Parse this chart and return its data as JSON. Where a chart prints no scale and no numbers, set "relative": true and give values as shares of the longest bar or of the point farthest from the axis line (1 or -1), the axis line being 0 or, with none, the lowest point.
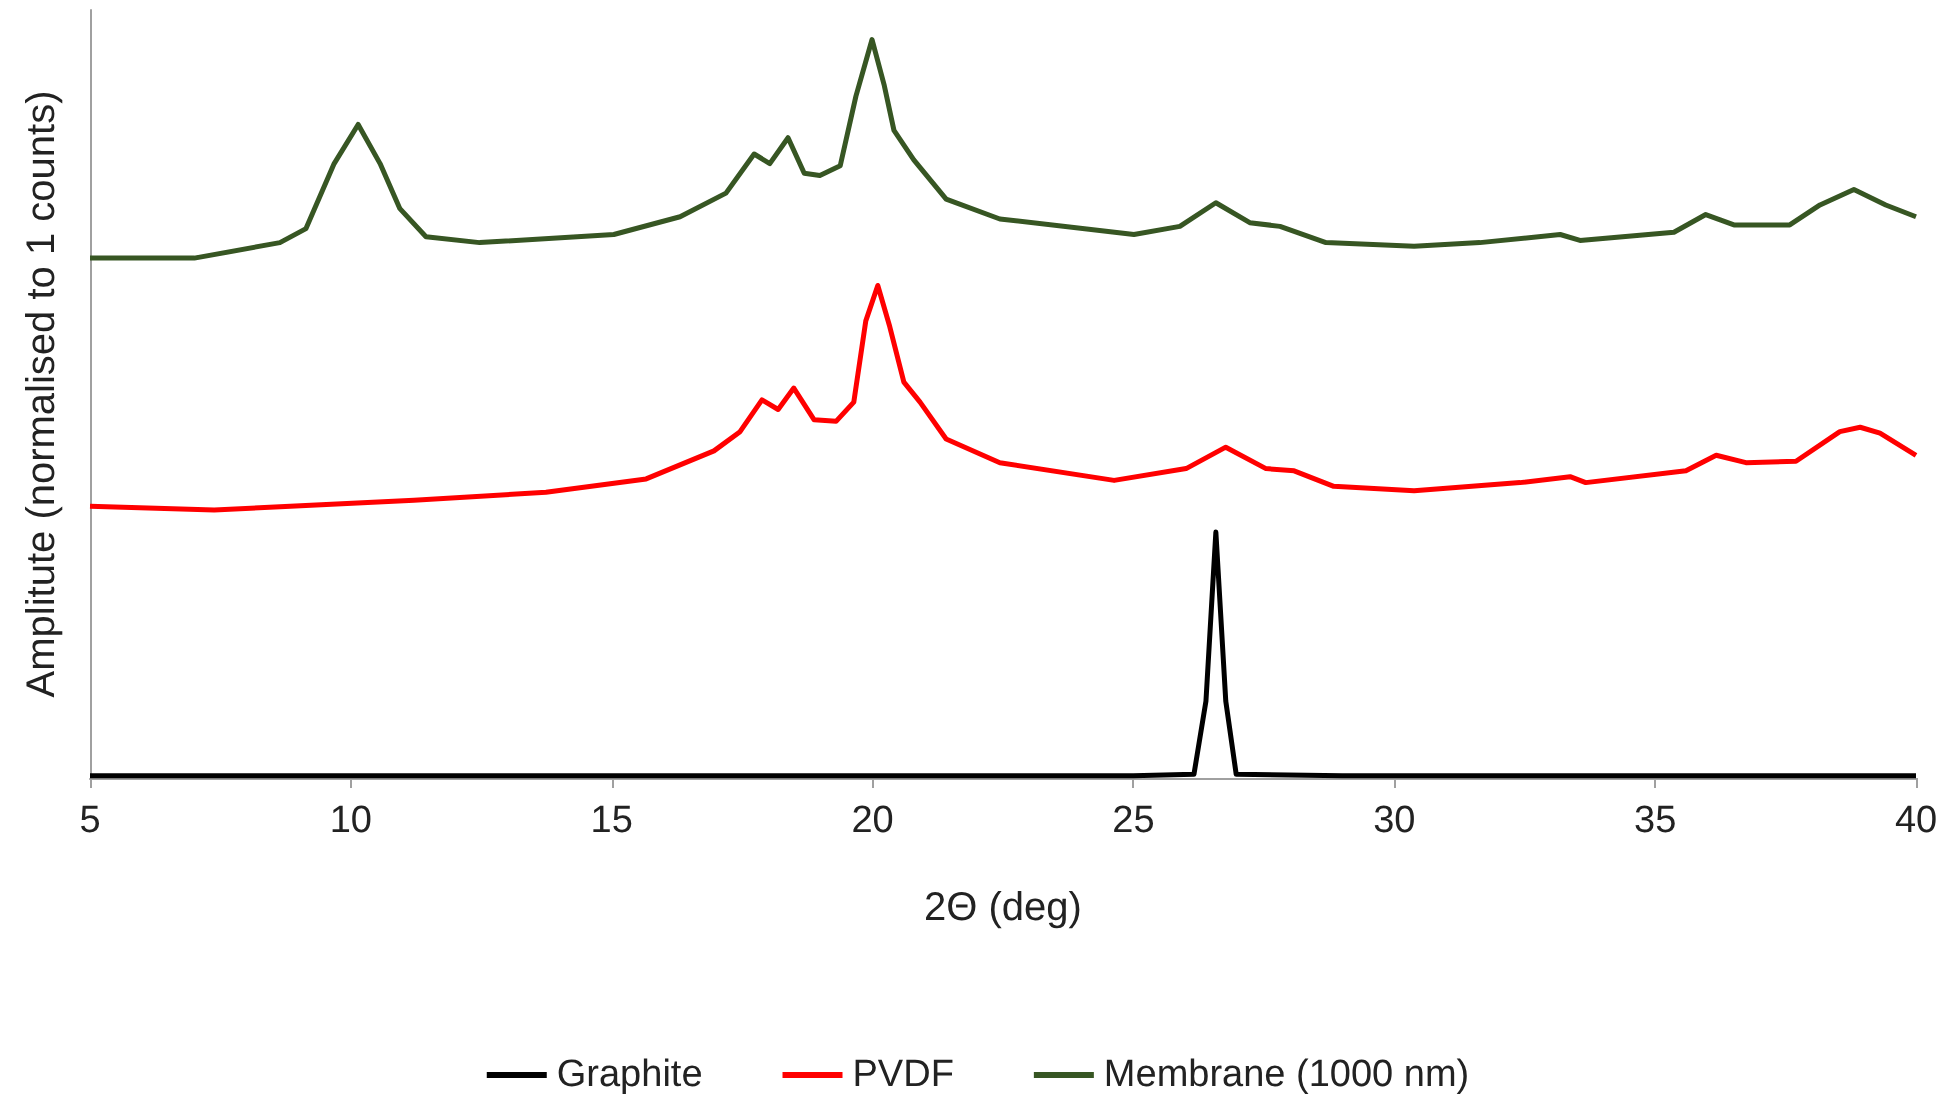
{
  "chart_data": {
    "type": "line",
    "xlabel": "2Θ (deg)",
    "ylabel": "Amplitute (normalised to 1 counts)",
    "relative": true,
    "xlim": [
      5,
      40
    ],
    "xticks": [
      5,
      10,
      15,
      20,
      25,
      30,
      35,
      40
    ],
    "grid": false,
    "legend": "bottom",
    "marker": "none",
    "line_style": "solid",
    "series": [
      {
        "name": "Graphite",
        "color": "#000000",
        "x": [
          5,
          10,
          15,
          20,
          25,
          26.16,
          26.39,
          26.58,
          26.77,
          26.97,
          29,
          35,
          40
        ],
        "values": [
          0.003,
          0.003,
          0.003,
          0.003,
          0.003,
          0.005,
          0.104,
          0.333,
          0.104,
          0.005,
          0.003,
          0.003,
          0.003
        ]
      },
      {
        "name": "PVDF",
        "color": "#ff0000",
        "x": [
          5,
          7.38,
          11.21,
          13.74,
          15.66,
          16.96,
          17.46,
          17.88,
          18.19,
          18.49,
          18.88,
          19.3,
          19.64,
          19.87,
          20.1,
          20.33,
          20.6,
          20.91,
          21.41,
          22.44,
          24.63,
          26.01,
          26.77,
          27.54,
          28.08,
          28.84,
          30.38,
          32.41,
          33.37,
          33.67,
          35.59,
          36.17,
          36.74,
          37.7,
          38.54,
          38.93,
          39.31,
          40
        ],
        "values": [
          0.368,
          0.363,
          0.376,
          0.387,
          0.405,
          0.443,
          0.469,
          0.512,
          0.499,
          0.528,
          0.485,
          0.483,
          0.509,
          0.619,
          0.667,
          0.611,
          0.536,
          0.509,
          0.459,
          0.427,
          0.403,
          0.419,
          0.448,
          0.419,
          0.416,
          0.395,
          0.389,
          0.4,
          0.408,
          0.4,
          0.416,
          0.437,
          0.427,
          0.429,
          0.469,
          0.475,
          0.467,
          0.437
        ]
      },
      {
        "name": "Membrane (1000 nm)",
        "color": "#375623",
        "x": [
          5,
          7,
          8.64,
          9.14,
          9.68,
          10.14,
          10.56,
          10.94,
          11.44,
          12.47,
          15.04,
          16.31,
          17.19,
          17.73,
          18.03,
          18.38,
          18.69,
          18.99,
          19.38,
          19.68,
          19.99,
          20.22,
          20.41,
          20.79,
          21.41,
          22.44,
          25.01,
          25.89,
          26.58,
          27.23,
          27.81,
          28.69,
          30.38,
          31.64,
          33.18,
          33.56,
          35.36,
          35.97,
          36.51,
          37.58,
          38.16,
          38.81,
          39.42,
          40
        ],
        "values": [
          0.704,
          0.704,
          0.725,
          0.744,
          0.832,
          0.885,
          0.832,
          0.771,
          0.733,
          0.725,
          0.736,
          0.76,
          0.792,
          0.845,
          0.832,
          0.867,
          0.819,
          0.816,
          0.829,
          0.923,
          1,
          0.939,
          0.877,
          0.837,
          0.784,
          0.757,
          0.736,
          0.747,
          0.779,
          0.752,
          0.747,
          0.725,
          0.72,
          0.725,
          0.736,
          0.728,
          0.739,
          0.763,
          0.749,
          0.749,
          0.776,
          0.797,
          0.776,
          0.76
        ]
      }
    ]
  }
}
